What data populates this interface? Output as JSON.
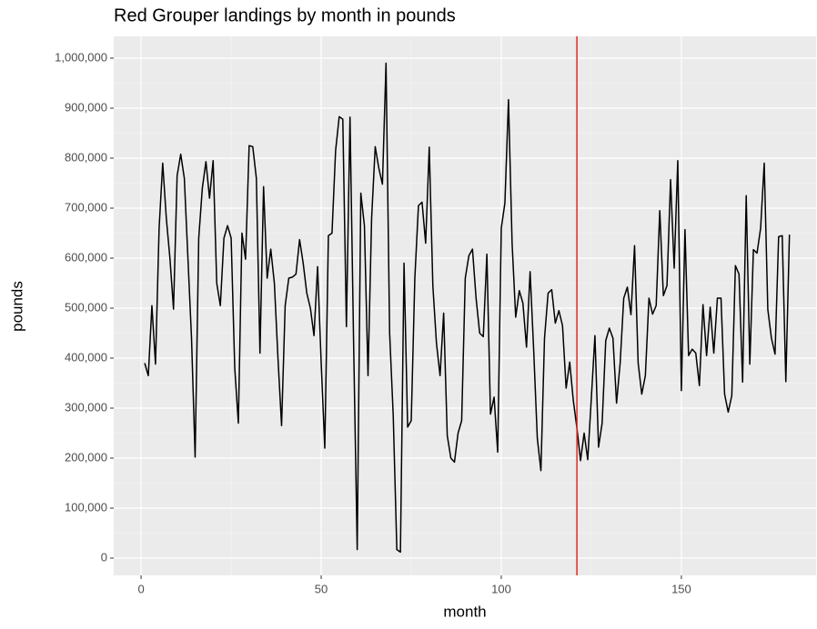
{
  "chart_data": {
    "type": "line",
    "title": "Red Grouper landings by month in pounds",
    "xlabel": "month",
    "ylabel": "pounds",
    "x": [
      1,
      2,
      3,
      4,
      5,
      6,
      7,
      8,
      9,
      10,
      11,
      12,
      13,
      14,
      15,
      16,
      17,
      18,
      19,
      20,
      21,
      22,
      23,
      24,
      25,
      26,
      27,
      28,
      29,
      30,
      31,
      32,
      33,
      34,
      35,
      36,
      37,
      38,
      39,
      40,
      41,
      42,
      43,
      44,
      45,
      46,
      47,
      48,
      49,
      50,
      51,
      52,
      53,
      54,
      55,
      56,
      57,
      58,
      59,
      60,
      61,
      62,
      63,
      64,
      65,
      66,
      67,
      68,
      69,
      70,
      71,
      72,
      73,
      74,
      75,
      76,
      77,
      78,
      79,
      80,
      81,
      82,
      83,
      84,
      85,
      86,
      87,
      88,
      89,
      90,
      91,
      92,
      93,
      94,
      95,
      96,
      97,
      98,
      99,
      100,
      101,
      102,
      103,
      104,
      105,
      106,
      107,
      108,
      109,
      110,
      111,
      112,
      113,
      114,
      115,
      116,
      117,
      118,
      119,
      120,
      121,
      122,
      123,
      124,
      125,
      126,
      127,
      128,
      129,
      130,
      131,
      132,
      133,
      134,
      135,
      136,
      137,
      138,
      139,
      140,
      141,
      142,
      143,
      144,
      145,
      146,
      147,
      148,
      149,
      150,
      151,
      152,
      153,
      154,
      155,
      156,
      157,
      158,
      159,
      160,
      161,
      162,
      163,
      164,
      165,
      166,
      167,
      168,
      169,
      170,
      171,
      172,
      173,
      174,
      175,
      176,
      177,
      178,
      179,
      180
    ],
    "series": [
      {
        "name": "pounds",
        "color": "#000000",
        "values": [
          390000,
          365000,
          505000,
          388000,
          660000,
          790000,
          680000,
          600000,
          498000,
          765000,
          808000,
          760000,
          600000,
          440000,
          202000,
          640000,
          740000,
          793000,
          720000,
          795000,
          550000,
          505000,
          640000,
          665000,
          640000,
          380000,
          270000,
          650000,
          598000,
          825000,
          823000,
          760000,
          410000,
          743000,
          560000,
          618000,
          550000,
          400000,
          265000,
          505000,
          560000,
          562000,
          568000,
          637000,
          590000,
          530000,
          500000,
          445000,
          583000,
          390000,
          220000,
          645000,
          650000,
          815000,
          883000,
          878000,
          463000,
          882000,
          430000,
          17000,
          730000,
          665000,
          365000,
          680000,
          823000,
          780000,
          748000,
          990000,
          450000,
          285000,
          17000,
          12000,
          590000,
          262000,
          275000,
          560000,
          705000,
          712000,
          630000,
          822000,
          545000,
          430000,
          365000,
          490000,
          245000,
          200000,
          192000,
          250000,
          275000,
          560000,
          605000,
          618000,
          520000,
          450000,
          443000,
          608000,
          288000,
          322000,
          212000,
          660000,
          710000,
          917000,
          630000,
          482000,
          535000,
          510000,
          422000,
          573000,
          415000,
          240000,
          175000,
          440000,
          530000,
          537000,
          470000,
          495000,
          465000,
          340000,
          392000,
          315000,
          260000,
          195000,
          250000,
          197000,
          320000,
          445000,
          222000,
          270000,
          435000,
          460000,
          440000,
          310000,
          390000,
          520000,
          542000,
          487000,
          625000,
          390000,
          328000,
          365000,
          520000,
          488000,
          505000,
          695000,
          525000,
          545000,
          757000,
          580000,
          795000,
          335000,
          657000,
          405000,
          418000,
          410000,
          345000,
          507000,
          405000,
          502000,
          410000,
          520000,
          520000,
          328000,
          292000,
          325000,
          585000,
          568000,
          352000,
          725000,
          388000,
          617000,
          610000,
          660000,
          790000,
          497000,
          440000,
          408000,
          643000,
          645000,
          353000,
          647000
        ]
      }
    ],
    "vline": 121,
    "vline_color": "#e0291f",
    "xlim": [
      -7.6,
      187.4
    ],
    "xticks": [
      0,
      50,
      100,
      150
    ],
    "ylim": [
      -34500,
      1043600
    ],
    "yticks": [
      0,
      {
        "value": 100000,
        "label": "100,000"
      },
      {
        "value": 200000,
        "label": "200,000"
      },
      {
        "value": 300000,
        "label": "300,000"
      },
      {
        "value": 400000,
        "label": "400,000"
      },
      {
        "value": 500000,
        "label": "500,000"
      },
      {
        "value": 600000,
        "label": "600,000"
      },
      {
        "value": 700000,
        "label": "700,000"
      },
      {
        "value": 800000,
        "label": "800,000"
      },
      {
        "value": 900000,
        "label": "900,000"
      },
      {
        "value": 1000000,
        "label": "1,000,000"
      }
    ],
    "grid": true
  }
}
